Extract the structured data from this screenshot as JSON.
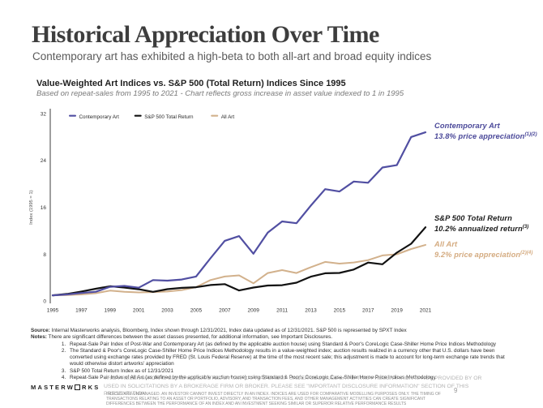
{
  "page": {
    "title": "Historical Appreciation Over Time",
    "subtitle": "Contemporary art has exhibited a high-beta to both all-art and broad equity indices",
    "page_number": "9"
  },
  "chart": {
    "title": "Value-Weighted Art Indices vs. S&P 500 (Total Return) Indices Since 1995",
    "subtitle": "Based on repeat-sales from 1995 to 2021 - Chart reflects gross increase in asset value indexed to 1 in 1995",
    "y_axis_label": "Index (1995 = 1)"
  },
  "chart_data": {
    "type": "line",
    "title": "Value-Weighted Art Indices vs. S&P 500 (Total Return) Indices Since 1995",
    "xlabel": "",
    "ylabel": "Index (1995 = 1)",
    "ylim": [
      0,
      32
    ],
    "y_ticks": [
      0,
      8,
      16,
      24,
      32
    ],
    "grid": false,
    "legend_position": "top-left-inside",
    "x": [
      1995,
      1996,
      1997,
      1998,
      1999,
      2000,
      2001,
      2002,
      2003,
      2004,
      2005,
      2006,
      2007,
      2008,
      2009,
      2010,
      2011,
      2012,
      2013,
      2014,
      2015,
      2016,
      2017,
      2018,
      2019,
      2020,
      2021
    ],
    "x_tick_labels": [
      "1995",
      "1997",
      "1999",
      "2001",
      "2003",
      "2005",
      "2007",
      "2009",
      "2011",
      "2013",
      "2015",
      "2017",
      "2019",
      "2021"
    ],
    "series": [
      {
        "name": "Contemporary Art",
        "color": "#514fa2",
        "values": [
          1.0,
          1.15,
          1.4,
          1.6,
          2.45,
          2.6,
          2.3,
          3.6,
          3.5,
          3.7,
          4.2,
          7.3,
          10.3,
          11.1,
          8.1,
          11.7,
          13.6,
          13.3,
          16.3,
          19.1,
          18.7,
          20.4,
          20.2,
          22.8,
          23.2,
          28.0,
          28.8
        ]
      },
      {
        "name": "S&P 500 Total Return",
        "color": "#111111",
        "values": [
          1.0,
          1.23,
          1.64,
          2.11,
          2.55,
          2.32,
          2.04,
          1.59,
          2.05,
          2.27,
          2.38,
          2.76,
          2.91,
          1.83,
          2.32,
          2.67,
          2.72,
          3.16,
          4.18,
          4.76,
          4.82,
          5.4,
          6.58,
          6.29,
          8.27,
          9.79,
          12.6
        ]
      },
      {
        "name": "All Art",
        "color": "#d2b18c",
        "values": [
          1.0,
          1.05,
          1.15,
          1.35,
          1.8,
          1.6,
          1.5,
          1.55,
          1.65,
          1.9,
          2.4,
          3.6,
          4.2,
          4.4,
          3.05,
          4.8,
          5.3,
          4.8,
          5.8,
          6.7,
          6.4,
          6.6,
          7.0,
          7.8,
          8.0,
          8.9,
          9.6
        ]
      }
    ],
    "annotations": [
      {
        "line1": "Contemporary Art",
        "line2": "13.8% price appreciation",
        "sup": "(1)(2)",
        "color": "#4a4899"
      },
      {
        "line1": "S&P 500 Total Return",
        "line2": "10.2% annualized return",
        "sup": "(3)",
        "color": "#1c1c1c"
      },
      {
        "line1": "All Art",
        "line2": "9.2% price appreciation",
        "sup": "(2)(4)",
        "color": "#d4ab80"
      }
    ]
  },
  "footer": {
    "source_label": "Source:",
    "source_text": " Internal Masterworks analysis, Bloomberg, Index shown through 12/31/2021, Index data updated as of 12/31/2021. S&P 500 is represented by SPXT Index",
    "notes_label": "Notes:",
    "notes_text": " There are significant differences between the asset classes presented, for additional information, see Important Disclosures.",
    "numbered_notes": [
      "Repeat-Sale Pair Index of Post-War and Contemporary Art (as defined by the applicable auction house) using Standard & Poor's CoreLogic Case-Shiller Home Price Indices Methodology",
      "The Standard & Poor's CoreLogic Case-Shiller Home Price Indices Methodology results in a value-weighted index; auction results realized in a currency other that U.S. dollars have been converted using exchange rates provided by FRED (St. Louis Federal Reserve) at the time of the most recent sale; this adjustment is made to account for long-term exchange rate trends that would otherwise distort artworks' appreciation",
      "S&P 500 Total Return Index as of 12/31/2021",
      "Repeat-Sale Pair Index of All Art (as defined by the applicable auction house) using Standard & Poor's CoreLogic Case-Shiller Home Price Indices Methodology"
    ],
    "disclaimer": "THIS PRESENTATION IS BEING CONDUCTED BY MW CAPITAL GROUP UNDER SEC RULE 3A4-1. THIS PRESENTATION IS NOT PROVIDED BY OR USED IN SOLICITATIONS BY A BROKERAGE FIRM OR BROKER. PLEASE SEE \"IMPORTANT DISCLOSURE INFORMATION\" SECTION OF THIS PRESENTATION",
    "fine_print": "INDICES ARE UNMANAGED. AN INVESTOR CANNOT INVEST DIRECTLY IN AN INDEX. INDICES ARE USED FOR COMPARATIVE MODELLING PURPOSES ONLY. THE TIMING OF TRANSACTIONS RELATING TO AN ASSET OR PORTFOLIO, ADVISORY, AND TRANSACTION FEES, AND OTHER MANAGEMENT ACTIVITIES CAN CREATE SIGNIFICANT DIFFERENCES BETWEEN THE PERFORMANCE OF AN INDEX AND AN INVESTMENT SEEKING SIMILAR OR SUPERIOR RELATIVE PERFORMANCE RESULTS"
  },
  "branding": {
    "logo_prefix": "MASTERW",
    "logo_suffix": "RKS"
  }
}
